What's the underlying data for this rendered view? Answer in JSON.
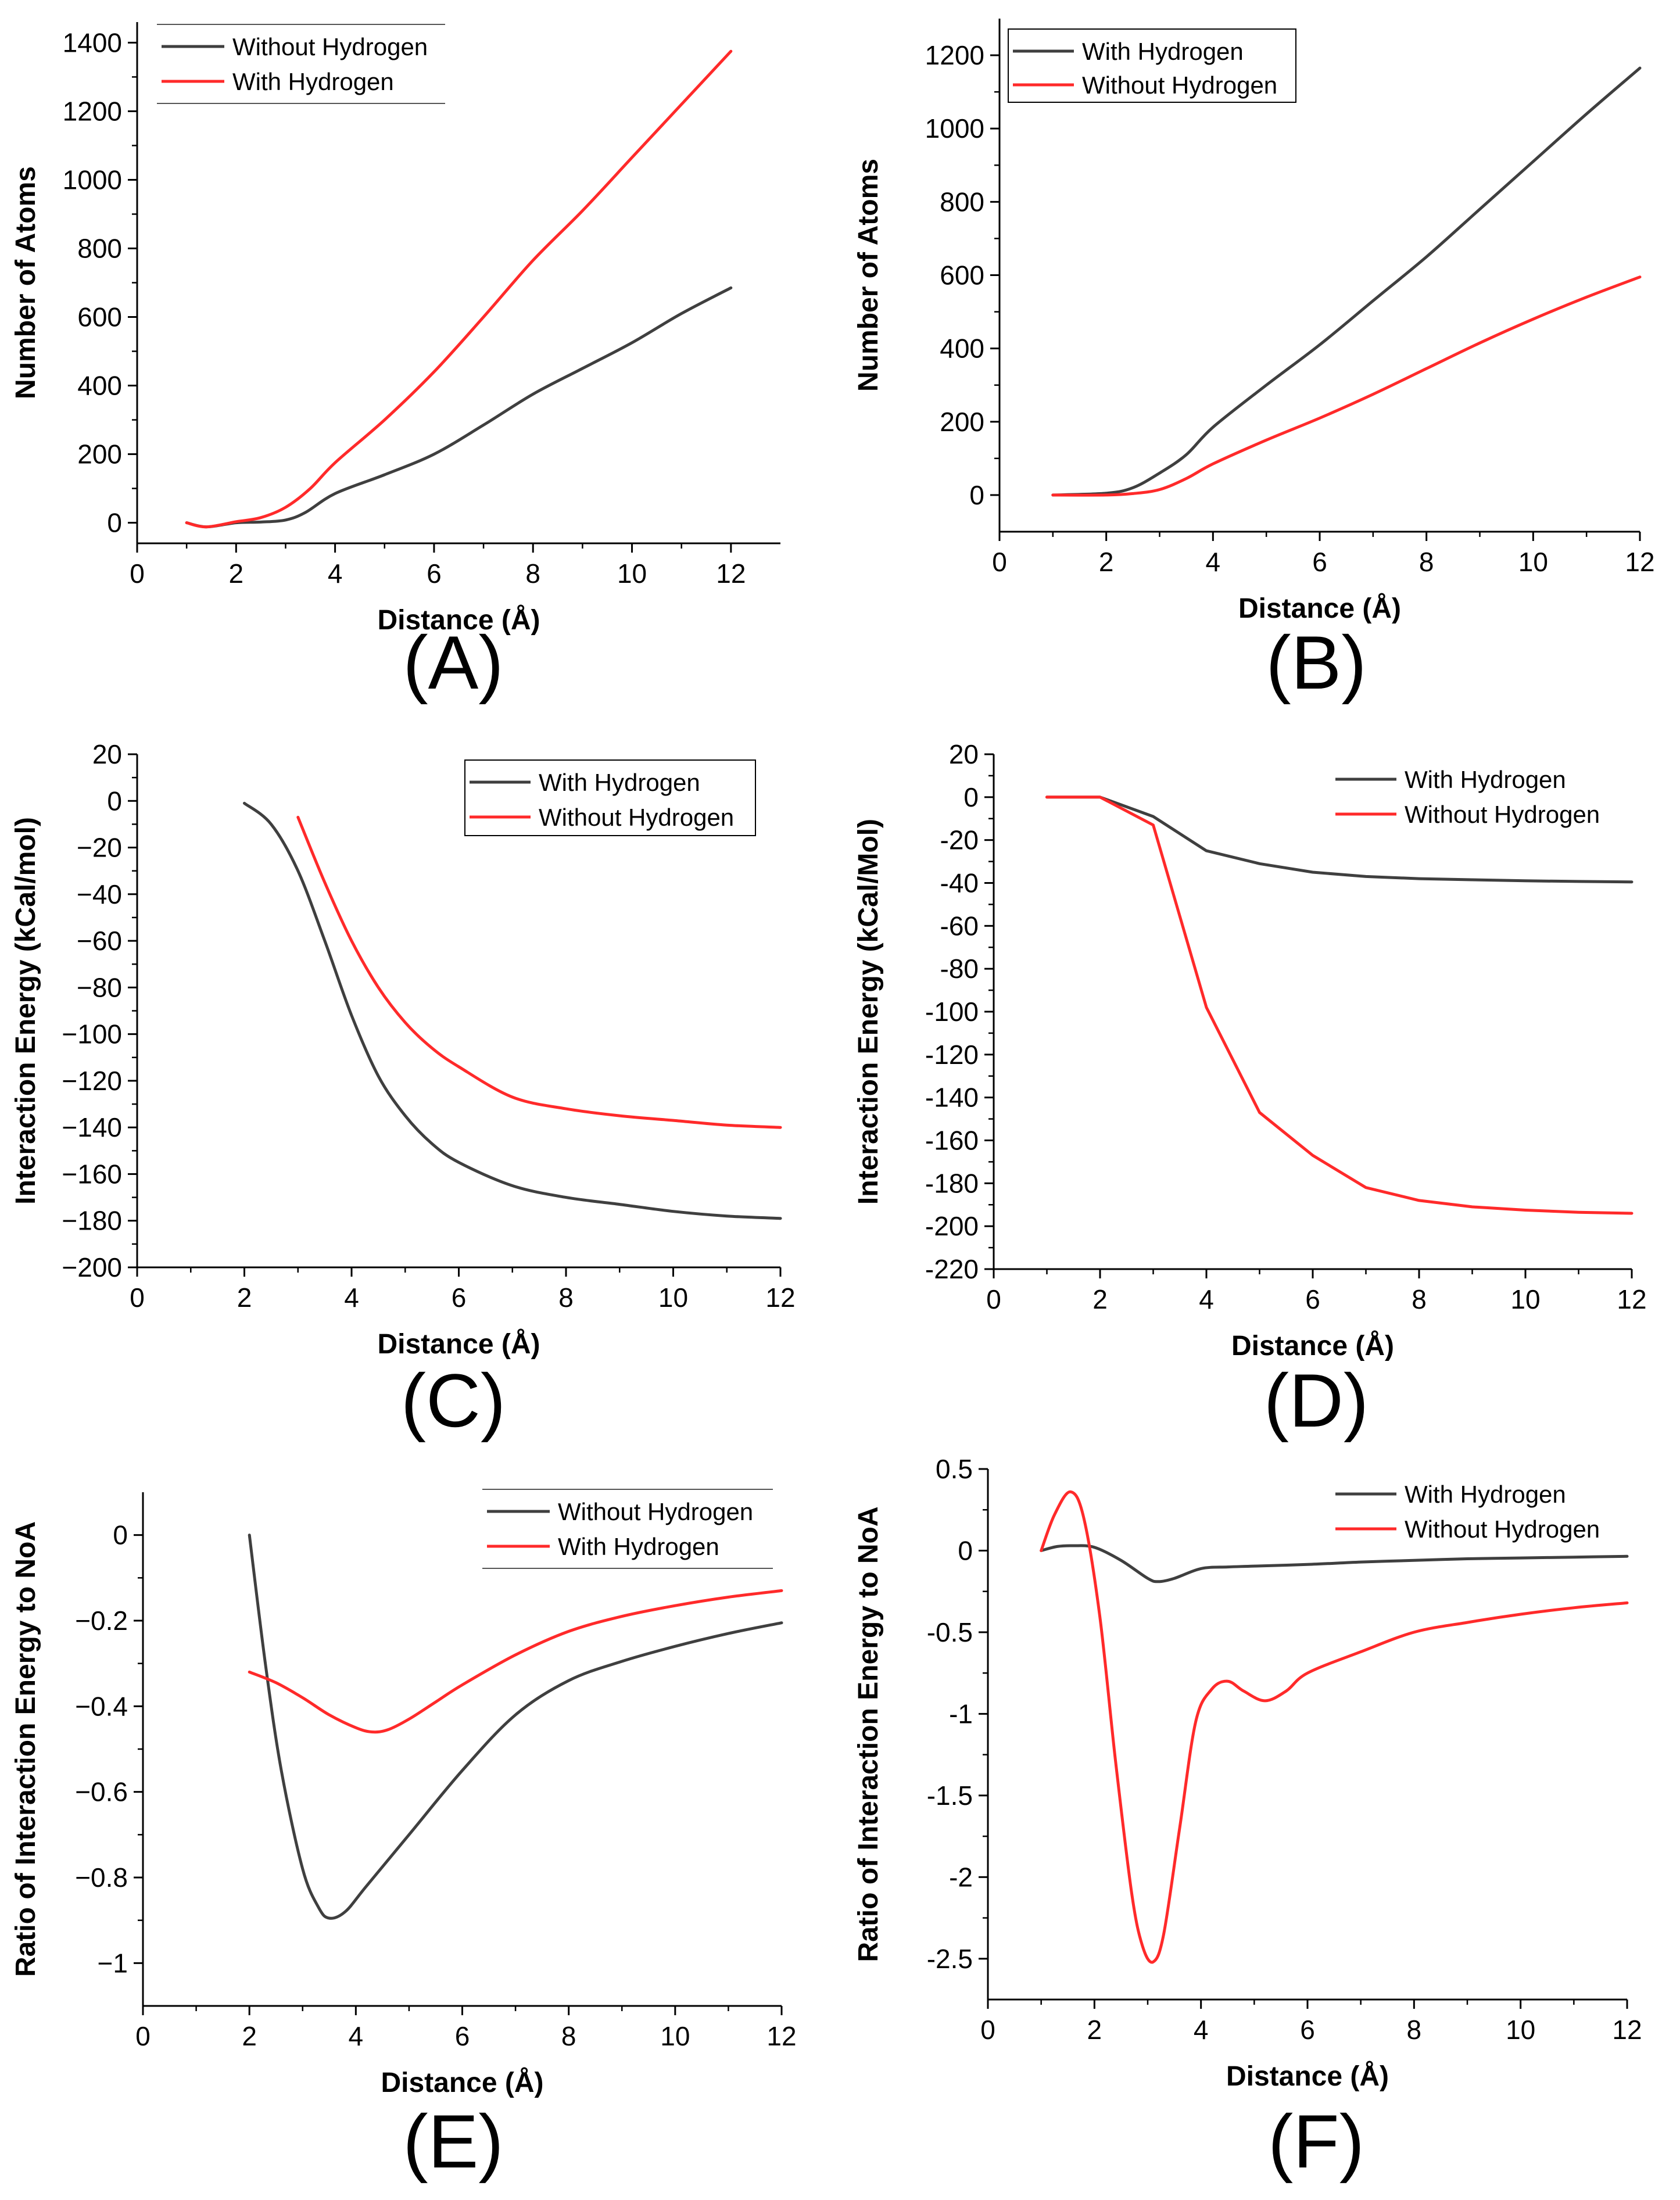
{
  "colors": {
    "dark": "#3f3f3f",
    "red": "#ff2a2a",
    "axis": "#000000"
  },
  "chart_data": [
    {
      "type": "line",
      "panel_label": "(A)",
      "title": "",
      "xlabel": "Distance (Å)",
      "ylabel": "Number of Atoms",
      "xlim": [
        0,
        13
      ],
      "ylim": [
        -60,
        1460
      ],
      "xticks": [
        0,
        2,
        4,
        6,
        8,
        10,
        12
      ],
      "yticks": [
        0,
        200,
        400,
        600,
        800,
        1000,
        1200,
        1400
      ],
      "legend": {
        "placement": "top-left",
        "boxed": "rules"
      },
      "series": [
        {
          "name": "Without Hydrogen",
          "color": "dark",
          "x": [
            1,
            1.4,
            2,
            2.5,
            3,
            3.4,
            4,
            5,
            6,
            7,
            8,
            9,
            10,
            11,
            12
          ],
          "y": [
            0,
            -12,
            0,
            2,
            8,
            30,
            85,
            140,
            200,
            285,
            375,
            450,
            525,
            610,
            685
          ]
        },
        {
          "name": "With Hydrogen",
          "color": "red",
          "x": [
            1,
            1.4,
            2,
            2.5,
            3,
            3.5,
            4,
            5,
            6,
            7,
            8,
            9,
            10,
            11,
            12
          ],
          "y": [
            0,
            -12,
            3,
            15,
            45,
            100,
            175,
            300,
            440,
            600,
            765,
            910,
            1065,
            1220,
            1375
          ]
        }
      ]
    },
    {
      "type": "line",
      "panel_label": "(B)",
      "title": "",
      "xlabel": "Distance (Å)",
      "ylabel": "Number of Atoms",
      "xlim": [
        0,
        12
      ],
      "ylim": [
        -100,
        1300
      ],
      "xticks": [
        0,
        2,
        4,
        6,
        8,
        10,
        12
      ],
      "yticks": [
        0,
        200,
        400,
        600,
        800,
        1000,
        1200
      ],
      "legend": {
        "placement": "top-left",
        "boxed": "frame"
      },
      "series": [
        {
          "name": "With Hydrogen",
          "color": "dark",
          "x": [
            1,
            2,
            2.5,
            3,
            3.5,
            4,
            5,
            6,
            7,
            8,
            9,
            10,
            11,
            12
          ],
          "y": [
            0,
            5,
            20,
            60,
            110,
            185,
            300,
            410,
            530,
            650,
            780,
            910,
            1040,
            1165
          ]
        },
        {
          "name": "Without Hydrogen",
          "color": "red",
          "x": [
            1,
            2,
            2.5,
            3,
            3.5,
            4,
            5,
            6,
            7,
            8,
            9,
            10,
            11,
            12
          ],
          "y": [
            0,
            0,
            4,
            15,
            45,
            85,
            150,
            210,
            275,
            345,
            415,
            480,
            540,
            595
          ]
        }
      ]
    },
    {
      "type": "line",
      "panel_label": "(C)",
      "title": "",
      "xlabel": "Distance (Å)",
      "ylabel": "Interaction Energy (kCal/mol)",
      "xlim": [
        0,
        12
      ],
      "ylim": [
        -200,
        20
      ],
      "xticks": [
        0,
        2,
        4,
        6,
        8,
        10,
        12
      ],
      "yticks": [
        20,
        0,
        -20,
        -40,
        -60,
        -80,
        -100,
        -120,
        -140,
        -160,
        -180,
        -200
      ],
      "tick_labels": {
        "20": "20",
        "0": "0",
        "-20": "−20",
        "-40": "−40",
        "-60": "−60",
        "-80": "−80",
        "-100": "−100",
        "-120": "−120",
        "-140": "−140",
        "-160": "−160",
        "-180": "−180",
        "-200": "−200"
      },
      "legend": {
        "placement": "top-right",
        "boxed": "frame"
      },
      "series": [
        {
          "name": "With Hydrogen",
          "color": "dark",
          "x": [
            2,
            2.5,
            3,
            3.5,
            4,
            4.5,
            5,
            5.5,
            6,
            7,
            8,
            9,
            10,
            11,
            12
          ],
          "y": [
            -1,
            -10,
            -30,
            -60,
            -92,
            -118,
            -135,
            -147,
            -155,
            -165,
            -170,
            -173,
            -176,
            -178,
            -179
          ]
        },
        {
          "name": "Without Hydrogen",
          "color": "red",
          "x": [
            3,
            3.5,
            4,
            4.5,
            5,
            5.5,
            6,
            7,
            8,
            9,
            10,
            11,
            12
          ],
          "y": [
            -7,
            -35,
            -60,
            -80,
            -95,
            -106,
            -114,
            -127,
            -132,
            -135,
            -137,
            -139,
            -140
          ]
        }
      ]
    },
    {
      "type": "line",
      "panel_label": "(D)",
      "title": "",
      "xlabel": "Distance (Å)",
      "ylabel": "Interaction Energy (kCal/Mol)",
      "xlim": [
        0,
        12
      ],
      "ylim": [
        -220,
        20
      ],
      "xticks": [
        0,
        2,
        4,
        6,
        8,
        10,
        12
      ],
      "yticks": [
        20,
        0,
        -20,
        -40,
        -60,
        -80,
        -100,
        -120,
        -140,
        -160,
        -180,
        -200,
        -220
      ],
      "legend": {
        "placement": "top-right",
        "boxed": "none"
      },
      "series": [
        {
          "name": "With Hydrogen",
          "color": "dark",
          "x": [
            1,
            2,
            3,
            4,
            5,
            6,
            7,
            8,
            9,
            10,
            11,
            12
          ],
          "y": [
            0,
            0,
            -9,
            -25,
            -31,
            -35,
            -37,
            -38,
            -38.5,
            -39,
            -39.3,
            -39.5
          ]
        },
        {
          "name": "Without Hydrogen",
          "color": "red",
          "x": [
            1,
            2,
            3,
            4,
            5,
            6,
            7,
            8,
            9,
            10,
            11,
            12
          ],
          "y": [
            0,
            0,
            -13,
            -98,
            -147,
            -167,
            -182,
            -188,
            -191,
            -192.5,
            -193.5,
            -194
          ]
        }
      ]
    },
    {
      "type": "line",
      "panel_label": "(E)",
      "title": "",
      "xlabel": "Distance (Å)",
      "ylabel": "Ratio of Interaction Energy to NoA",
      "xlim": [
        0,
        12
      ],
      "ylim": [
        -1.1,
        0.1
      ],
      "xticks": [
        0,
        2,
        4,
        6,
        8,
        10,
        12
      ],
      "yticks": [
        0,
        -0.2,
        -0.4,
        -0.6,
        -0.8,
        -1
      ],
      "tick_labels": {
        "0": "0",
        "-0.2": "−0.2",
        "-0.4": "−0.4",
        "-0.6": "−0.6",
        "-0.8": "−0.8",
        "-1": "−1"
      },
      "legend": {
        "placement": "top-right",
        "boxed": "rules"
      },
      "series": [
        {
          "name": "Without Hydrogen",
          "color": "dark",
          "x": [
            2,
            2.3,
            2.6,
            3,
            3.3,
            3.5,
            3.8,
            4.2,
            5,
            6,
            7,
            8,
            9,
            10,
            11,
            12
          ],
          "y": [
            0,
            -0.3,
            -0.55,
            -0.78,
            -0.87,
            -0.895,
            -0.88,
            -0.82,
            -0.7,
            -0.55,
            -0.42,
            -0.34,
            -0.295,
            -0.26,
            -0.23,
            -0.205
          ]
        },
        {
          "name": "With Hydrogen",
          "color": "red",
          "x": [
            2,
            2.5,
            3,
            3.5,
            4,
            4.3,
            4.6,
            5,
            5.5,
            6,
            7,
            8,
            9,
            10,
            11,
            12
          ],
          "y": [
            -0.32,
            -0.345,
            -0.38,
            -0.42,
            -0.45,
            -0.46,
            -0.455,
            -0.43,
            -0.39,
            -0.35,
            -0.28,
            -0.225,
            -0.19,
            -0.165,
            -0.145,
            -0.13
          ]
        }
      ]
    },
    {
      "type": "line",
      "panel_label": "(F)",
      "title": "",
      "xlabel": "Distance (Å)",
      "ylabel": "Ratio of Interaction Energy to NoA",
      "xlim": [
        0,
        12
      ],
      "ylim": [
        -2.75,
        0.5
      ],
      "xticks": [
        0,
        2,
        4,
        6,
        8,
        10,
        12
      ],
      "yticks": [
        0.5,
        0,
        -0.5,
        -1,
        -1.5,
        -2,
        -2.5
      ],
      "legend": {
        "placement": "top-right",
        "boxed": "none"
      },
      "series": [
        {
          "name": "With Hydrogen",
          "color": "dark",
          "x": [
            1,
            1.3,
            1.6,
            2,
            2.5,
            3,
            3.2,
            3.5,
            4,
            4.5,
            5,
            6,
            7,
            8,
            9,
            10,
            11,
            12
          ],
          "y": [
            0,
            0.025,
            0.03,
            0.02,
            -0.06,
            -0.17,
            -0.19,
            -0.17,
            -0.11,
            -0.1,
            -0.095,
            -0.085,
            -0.07,
            -0.06,
            -0.05,
            -0.045,
            -0.04,
            -0.035
          ]
        },
        {
          "name": "Without Hydrogen",
          "color": "red",
          "x": [
            1,
            1.25,
            1.55,
            1.8,
            2.1,
            2.4,
            2.7,
            2.9,
            3.1,
            3.3,
            3.6,
            3.9,
            4.2,
            4.5,
            4.8,
            5.2,
            5.6,
            6,
            7,
            8,
            9,
            10,
            11,
            12
          ],
          "y": [
            0,
            0.22,
            0.36,
            0.2,
            -0.4,
            -1.3,
            -2.1,
            -2.42,
            -2.52,
            -2.35,
            -1.7,
            -1.05,
            -0.85,
            -0.8,
            -0.86,
            -0.92,
            -0.86,
            -0.75,
            -0.62,
            -0.5,
            -0.44,
            -0.39,
            -0.35,
            -0.32
          ]
        }
      ]
    }
  ]
}
